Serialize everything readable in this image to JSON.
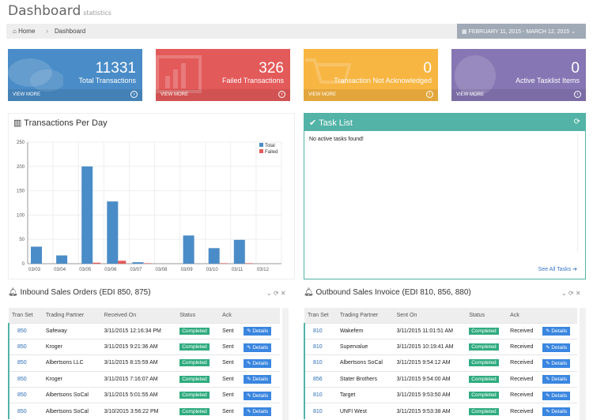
{
  "header": {
    "title": "Dashboard",
    "subtitle": "statistics"
  },
  "breadcrumb": {
    "home": "Home",
    "current": "Dashboard",
    "date_range": "FEBRUARY 11, 2015 - MARCH 12, 2015"
  },
  "stats": [
    {
      "value": "11331",
      "label": "Total Transactions",
      "more": "VIEW MORE",
      "color": "#4a8cc7"
    },
    {
      "value": "326",
      "label": "Failed Transactions",
      "more": "VIEW MORE",
      "color": "#e35a5a"
    },
    {
      "value": "0",
      "label": "Transaction Not Acknowledged",
      "more": "VIEW MORE",
      "color": "#f7b542"
    },
    {
      "value": "0",
      "label": "Active Tasklist Items",
      "more": "VIEW MORE",
      "color": "#8676b3"
    }
  ],
  "chart_panel": {
    "title": "Transactions Per Day"
  },
  "chart_data": {
    "type": "bar",
    "categories": [
      "03/03",
      "03/04",
      "03/05",
      "03/06",
      "03/07",
      "03/08",
      "03/09",
      "03/10",
      "03/11",
      "03/12"
    ],
    "series": [
      {
        "name": "Total",
        "color": "#4a8cc7",
        "values": [
          35,
          17,
          200,
          128,
          3,
          0,
          58,
          32,
          49,
          0
        ]
      },
      {
        "name": "Failed",
        "color": "#e35a5a",
        "values": [
          0,
          0,
          2,
          6,
          1,
          0,
          0,
          1,
          1,
          0
        ]
      }
    ],
    "yticks": [
      "0",
      "50",
      "100",
      "150",
      "200",
      "250"
    ],
    "ylim": [
      0,
      250
    ]
  },
  "task": {
    "title": "Task List",
    "empty": "No active tasks found!",
    "see_all": "See All Tasks"
  },
  "inbound": {
    "title": "Inbound Sales Orders (EDI 850, 875)",
    "columns": [
      "Tran Set",
      "Trading Partner",
      "Received On",
      "Status",
      "Ack"
    ],
    "rows": [
      {
        "ts": "850",
        "tp": "Safeway",
        "date": "3/11/2015 12:16:34 PM",
        "status": "Completed",
        "ack": "Sent",
        "btn": "Details"
      },
      {
        "ts": "850",
        "tp": "Kroger",
        "date": "3/11/2015 9:21:36 AM",
        "status": "Completed",
        "ack": "Sent",
        "btn": "Details"
      },
      {
        "ts": "850",
        "tp": "Albertsons LLC",
        "date": "3/11/2015 8:15:59 AM",
        "status": "Completed",
        "ack": "Sent",
        "btn": "Details"
      },
      {
        "ts": "850",
        "tp": "Kroger",
        "date": "3/11/2015 7:16:07 AM",
        "status": "Completed",
        "ack": "Sent",
        "btn": "Details"
      },
      {
        "ts": "850",
        "tp": "Albertsons SoCal",
        "date": "3/11/2015 5:01:55 AM",
        "status": "Completed",
        "ack": "Sent",
        "btn": "Details"
      },
      {
        "ts": "850",
        "tp": "Albertsons SoCal",
        "date": "3/10/2015 3:56:22 PM",
        "status": "Completed",
        "ack": "Sent",
        "btn": "Details"
      }
    ]
  },
  "outbound": {
    "title": "Outbound Sales Invoice (EDI 810, 856, 880)",
    "columns": [
      "Tran Set",
      "Trading Partner",
      "Sent On",
      "Status",
      "Ack"
    ],
    "rows": [
      {
        "ts": "810",
        "tp": "Wakefern",
        "date": "3/11/2015 11:01:51 AM",
        "status": "Completed",
        "ack": "Received",
        "btn": "Details"
      },
      {
        "ts": "810",
        "tp": "Supervalue",
        "date": "3/11/2015 10:19:41 AM",
        "status": "Completed",
        "ack": "Received",
        "btn": "Details"
      },
      {
        "ts": "810",
        "tp": "Albertsons SoCal",
        "date": "3/11/2015 9:54:12 AM",
        "status": "Completed",
        "ack": "Received",
        "btn": "Details"
      },
      {
        "ts": "856",
        "tp": "Stater Brothers",
        "date": "3/11/2015 9:54:00 AM",
        "status": "Completed",
        "ack": "Received",
        "btn": "Details"
      },
      {
        "ts": "810",
        "tp": "Target",
        "date": "3/11/2015 9:53:50 AM",
        "status": "Completed",
        "ack": "Received",
        "btn": "Details"
      },
      {
        "ts": "810",
        "tp": "UNFI West",
        "date": "3/11/2015 9:53:38 AM",
        "status": "Completed",
        "ack": "Received",
        "btn": "Details"
      }
    ]
  }
}
